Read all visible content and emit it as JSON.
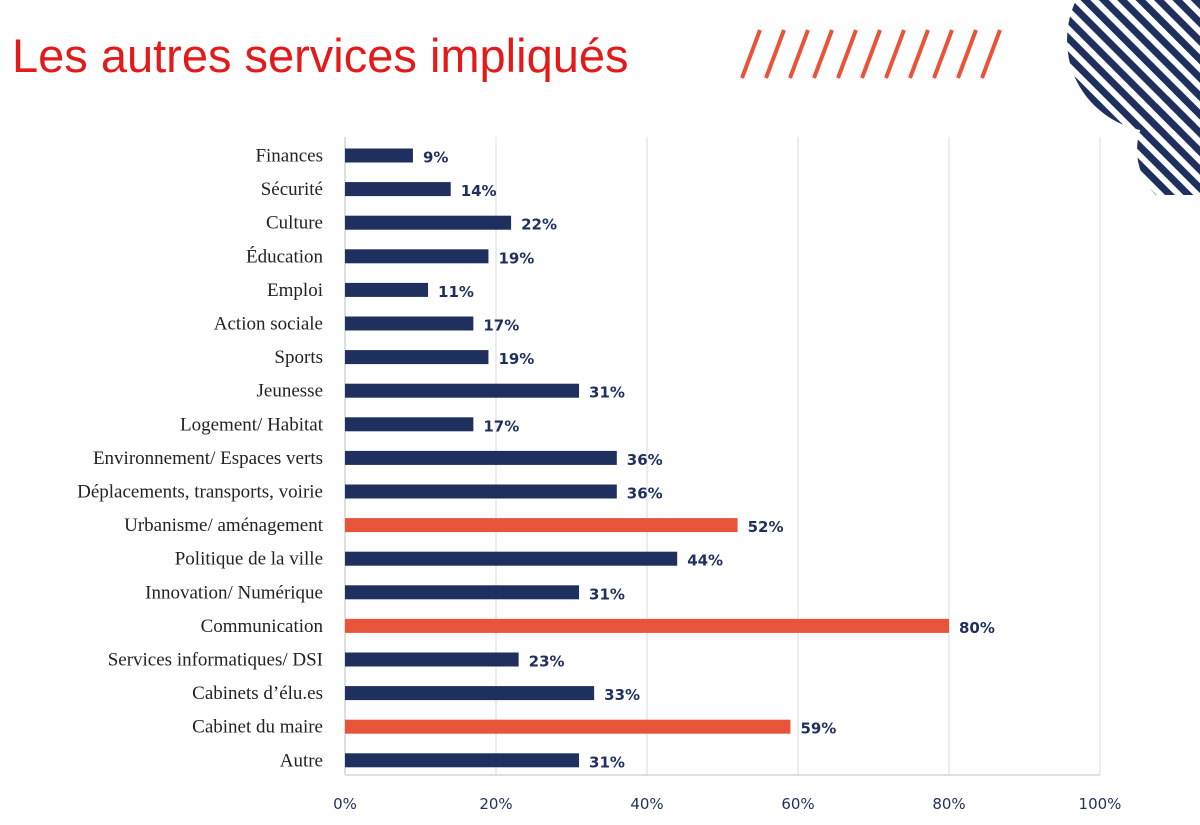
{
  "page": {
    "title": "Les autres services impliqués"
  },
  "colors": {
    "title": "#e21a1a",
    "bar_default": "#1f2f5e",
    "bar_highlight": "#e8543a",
    "slashes": "#e8543a",
    "deco_stripes": "#1f2f5e"
  },
  "chart_data": {
    "type": "bar",
    "orientation": "horizontal",
    "title": "",
    "xlabel": "",
    "ylabel": "",
    "xlim": [
      0,
      100
    ],
    "x_ticks": [
      "0%",
      "20%",
      "40%",
      "60%",
      "80%",
      "100%"
    ],
    "grid": "vertical",
    "categories": [
      "Finances",
      "Sécurité",
      "Culture",
      "Éducation",
      "Emploi",
      "Action sociale",
      "Sports",
      "Jeunesse",
      "Logement/ Habitat",
      "Environnement/ Espaces verts",
      "Déplacements, transports, voirie",
      "Urbanisme/ aménagement",
      "Politique de la ville",
      "Innovation/ Numérique",
      "Communication",
      "Services informatiques/ DSI",
      "Cabinets d’élu.es",
      "Cabinet du maire",
      "Autre"
    ],
    "values": [
      9,
      14,
      22,
      19,
      11,
      17,
      19,
      31,
      17,
      36,
      36,
      52,
      44,
      31,
      80,
      23,
      33,
      59,
      31
    ],
    "value_labels": [
      "9%",
      "14%",
      "22%",
      "19%",
      "11%",
      "17%",
      "19%",
      "31%",
      "17%",
      "36%",
      "36%",
      "52%",
      "44%",
      "31%",
      "80%",
      "23%",
      "33%",
      "59%",
      "31%"
    ],
    "highlighted": [
      false,
      false,
      false,
      false,
      false,
      false,
      false,
      false,
      false,
      false,
      false,
      true,
      false,
      false,
      true,
      false,
      false,
      true,
      false
    ]
  }
}
